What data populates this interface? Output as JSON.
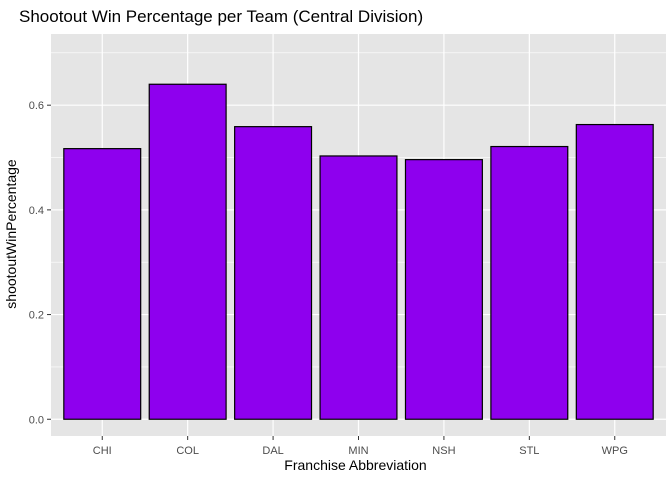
{
  "chart_data": {
    "type": "bar",
    "title": "Shootout Win Percentage per Team (Central Division)",
    "xlabel": "Franchise Abbreviation",
    "ylabel": "shootoutWinPercentage",
    "categories": [
      "CHI",
      "COL",
      "DAL",
      "MIN",
      "NSH",
      "STL",
      "WPG"
    ],
    "values": [
      0.517,
      0.64,
      0.559,
      0.503,
      0.496,
      0.521,
      0.563
    ],
    "ylim": [
      -0.032,
      0.736
    ],
    "yticks": [
      0.0,
      0.2,
      0.4,
      0.6
    ],
    "ytick_labels": [
      "0.0",
      "0.2",
      "0.4",
      "0.6"
    ],
    "grid": true,
    "legend": "none",
    "colors": {
      "bar_fill": "#8e00ee",
      "bar_stroke": "#000000",
      "panel_bg": "#e5e5e5",
      "grid": "#ffffff",
      "text": "#000000",
      "tick_text": "#4d4d4d",
      "tick_mark": "#333333"
    }
  }
}
